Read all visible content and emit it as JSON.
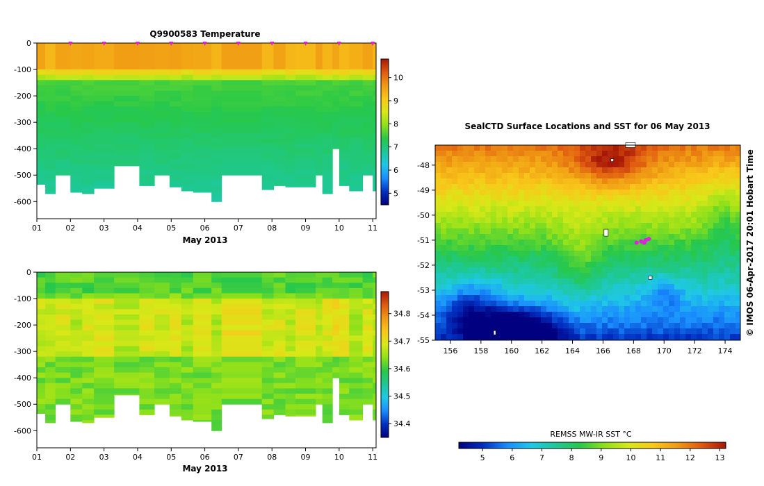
{
  "colors": {
    "scale": [
      "#000080",
      "#0030c0",
      "#1a8cff",
      "#1fc8e6",
      "#1ec896",
      "#27c84a",
      "#8ee01a",
      "#d8e818",
      "#f8c81a",
      "#f09a14",
      "#e05a10",
      "#a81808"
    ],
    "marker": "#e020e0",
    "axis": "#000000"
  },
  "watermark": "© IMOS 06-Apr-2017 20:01 Hobart Time",
  "chart_data": [
    {
      "id": "temperature",
      "type": "heatmap",
      "title": "Q9900583  Temperature",
      "xlabel": "May 2013",
      "ylabel": "",
      "x_ticks": [
        "01",
        "02",
        "03",
        "04",
        "05",
        "06",
        "07",
        "08",
        "09",
        "10",
        "11"
      ],
      "y_ticks": [
        "0",
        "-100",
        "-200",
        "-300",
        "-400",
        "-500",
        "-600"
      ],
      "ylim": [
        -665,
        0
      ],
      "xlim": [
        1,
        11.1
      ],
      "colorbar_ticks": [
        "5",
        "6",
        "7",
        "8",
        "9",
        "10"
      ],
      "colorbar_range": [
        4.5,
        10.8
      ],
      "profile_markers_day": [
        2,
        3,
        4,
        5,
        6,
        7,
        8,
        9,
        10,
        11
      ],
      "profiles": [
        {
          "day": 1.0,
          "max_depth": 535
        },
        {
          "day": 1.25,
          "max_depth": 570
        },
        {
          "day": 1.55,
          "max_depth": 500
        },
        {
          "day": 2.0,
          "max_depth": 565
        },
        {
          "day": 2.35,
          "max_depth": 570
        },
        {
          "day": 2.7,
          "max_depth": 550
        },
        {
          "day": 3.3,
          "max_depth": 465
        },
        {
          "day": 4.05,
          "max_depth": 540
        },
        {
          "day": 4.5,
          "max_depth": 500
        },
        {
          "day": 4.95,
          "max_depth": 545
        },
        {
          "day": 5.3,
          "max_depth": 560
        },
        {
          "day": 5.65,
          "max_depth": 565
        },
        {
          "day": 6.2,
          "max_depth": 600
        },
        {
          "day": 6.5,
          "max_depth": 500
        },
        {
          "day": 7.7,
          "max_depth": 555
        },
        {
          "day": 8.05,
          "max_depth": 540
        },
        {
          "day": 8.4,
          "max_depth": 545
        },
        {
          "day": 8.7,
          "max_depth": 545
        },
        {
          "day": 9.3,
          "max_depth": 500
        },
        {
          "day": 9.5,
          "max_depth": 570
        },
        {
          "day": 9.8,
          "max_depth": 400
        },
        {
          "day": 10.0,
          "max_depth": 540
        },
        {
          "day": 10.3,
          "max_depth": 560
        },
        {
          "day": 10.7,
          "max_depth": 500
        },
        {
          "day": 11.0,
          "max_depth": 560
        }
      ]
    },
    {
      "id": "salinity",
      "type": "heatmap",
      "title": "",
      "xlabel": "May 2013",
      "ylabel": "",
      "x_ticks": [
        "01",
        "02",
        "03",
        "04",
        "05",
        "06",
        "07",
        "08",
        "09",
        "10",
        "11"
      ],
      "y_ticks": [
        "0",
        "-100",
        "-200",
        "-300",
        "-400",
        "-500",
        "-600"
      ],
      "ylim": [
        -665,
        0
      ],
      "xlim": [
        1,
        11.1
      ],
      "colorbar_ticks": [
        "34.4",
        "34.5",
        "34.6",
        "34.7",
        "34.8"
      ],
      "colorbar_range": [
        34.35,
        34.88
      ]
    },
    {
      "id": "sst_map",
      "type": "heatmap",
      "title": "SealCTD Surface Locations and SST for 06 May 2013",
      "xlabel": "",
      "ylabel": "",
      "x_ticks": [
        "156",
        "158",
        "160",
        "162",
        "164",
        "166",
        "168",
        "170",
        "172",
        "174"
      ],
      "xlim": [
        155,
        175
      ],
      "y_ticks": [
        "-48",
        "-49",
        "-50",
        "-51",
        "-52",
        "-53",
        "-54",
        "-55"
      ],
      "ylim": [
        -55,
        -47.2
      ],
      "colorbar_label": "REMSS MW-IR SST °C",
      "colorbar_ticks": [
        "5",
        "6",
        "7",
        "8",
        "9",
        "10",
        "11",
        "12",
        "13"
      ],
      "colorbar_range": [
        4.2,
        13.2
      ],
      "track": [
        {
          "lon": 168.2,
          "lat": -51.1
        },
        {
          "lon": 168.5,
          "lat": -51.05
        },
        {
          "lon": 168.8,
          "lat": -51.0
        },
        {
          "lon": 169.0,
          "lat": -50.95
        },
        {
          "lon": 168.7,
          "lat": -51.1
        }
      ]
    }
  ]
}
